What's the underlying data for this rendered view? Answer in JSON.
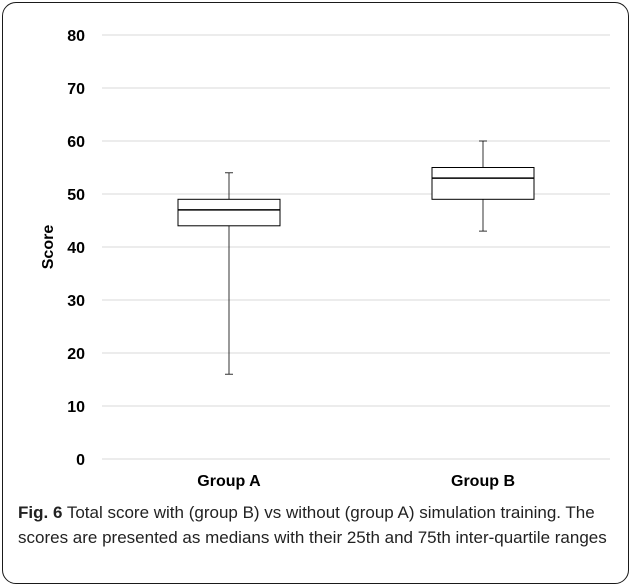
{
  "chart_data": {
    "type": "box",
    "categories": [
      "Group A",
      "Group B"
    ],
    "ylabel": "Score",
    "xlabel": "",
    "ylim": [
      0,
      80
    ],
    "yticks": [
      0,
      10,
      20,
      30,
      40,
      50,
      60,
      70,
      80
    ],
    "grid": true,
    "boxes": [
      {
        "category": "Group A",
        "min": 16,
        "q1": 44,
        "median": 47,
        "q3": 49,
        "max": 54
      },
      {
        "category": "Group B",
        "min": 43,
        "q1": 49,
        "median": 53,
        "q3": 55,
        "max": 60
      }
    ]
  },
  "caption": {
    "label": "Fig. 6",
    "text": "Total score with (group B) vs without (group A) simulation training. The scores are presented as medians with their 25th and 75th inter-quartile ranges"
  }
}
